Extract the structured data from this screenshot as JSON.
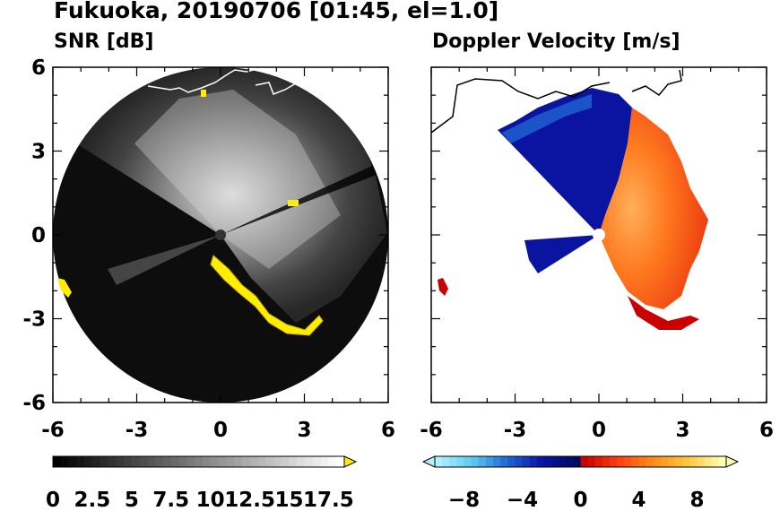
{
  "title": "Fukuoka, 20190706 [01:45, el=1.0]",
  "chart_data": [
    {
      "type": "heatmap",
      "title": "SNR [dB]",
      "xlim": [
        -6,
        6
      ],
      "ylim": [
        -6,
        6
      ],
      "x_ticks": [
        "-6",
        "-3",
        "0",
        "3",
        "6"
      ],
      "y_ticks": [
        "6",
        "3",
        "0",
        "-3",
        "-6"
      ],
      "radar_range": 6,
      "colorbar": {
        "min": 0,
        "max": 18.5,
        "extend": "max",
        "tick_labels": [
          "0",
          "2.5",
          "5",
          "7.5",
          "10",
          "12.5",
          "15",
          "17.5"
        ],
        "tick_values": [
          0,
          2.5,
          5,
          7.5,
          10,
          12.5,
          15,
          17.5
        ],
        "colors": [
          "#000000",
          "#ffffff"
        ],
        "over_color": "#ffee00"
      },
      "clutter_color": "#ffee00"
    },
    {
      "type": "heatmap",
      "title": "Doppler Velocity [m/s]",
      "xlim": [
        -6,
        6
      ],
      "ylim": [
        -6,
        6
      ],
      "x_ticks": [
        "-6",
        "-3",
        "0",
        "3",
        "6"
      ],
      "y_ticks": [],
      "radar_range": 6,
      "colorbar": {
        "min": -10,
        "max": 10,
        "extend": "both",
        "tick_labels": [
          "−8",
          "−4",
          "0",
          "4",
          "8"
        ],
        "tick_values": [
          -8,
          -4,
          0,
          4,
          8
        ],
        "colors": [
          "#b0f0ff",
          "#5bc8f0",
          "#1e64d2",
          "#0a14a0",
          "#000a60",
          "#c80000",
          "#ff4010",
          "#ff8c1a",
          "#ffc83c",
          "#ffffb4"
        ]
      }
    }
  ]
}
